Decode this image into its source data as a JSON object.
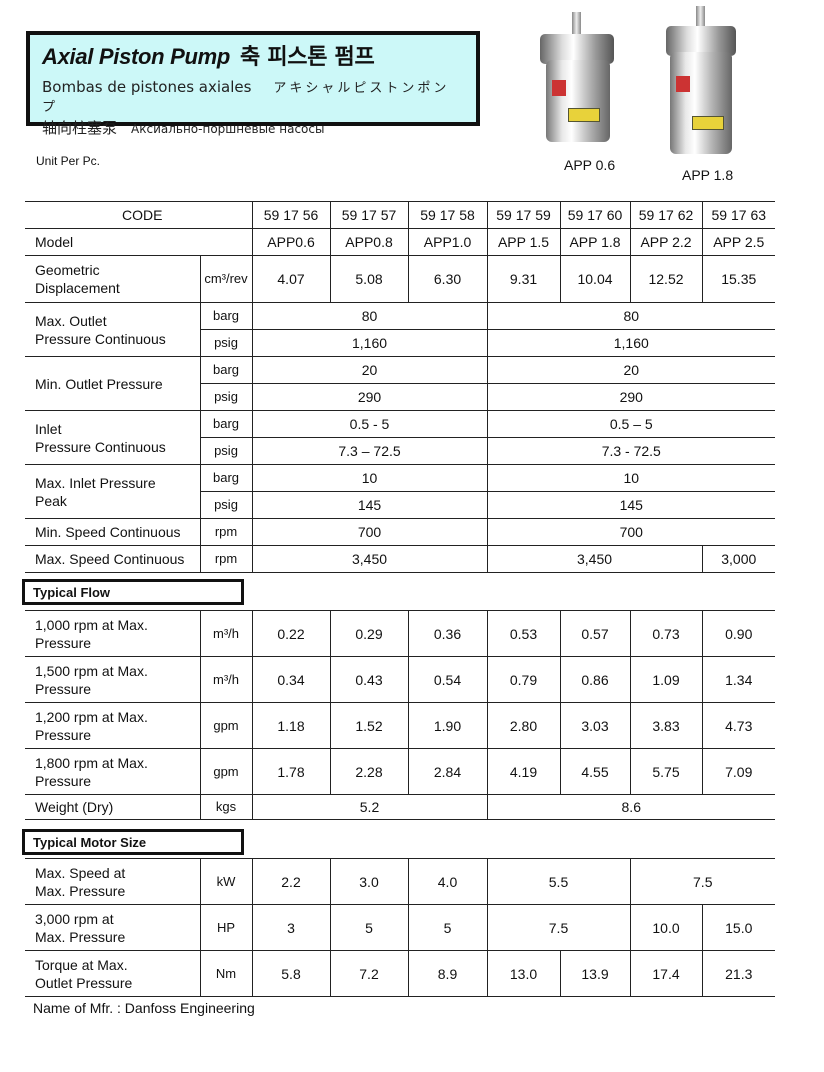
{
  "header": {
    "title_en": "Axial Piston Pump",
    "title_kr": "축 피스톤 펌프",
    "subtitle_es": "Bombas de pistones axiales",
    "subtitle_jp": "アキシャルピストンポンプ",
    "subtitle_cn": "轴向柱塞泵",
    "subtitle_ru": "Аксиально-поршневые насосы",
    "background_color": "#ccf8f8"
  },
  "unit_note": "Unit Per Pc.",
  "images": [
    {
      "caption": "APP 0.6"
    },
    {
      "caption": "APP 1.8"
    }
  ],
  "spec_table": {
    "rows": [
      {
        "label": "CODE",
        "label_colspan": 2,
        "center": true,
        "cells": [
          {
            "v": "59 17 56"
          },
          {
            "v": "59 17 57"
          },
          {
            "v": "59 17 58"
          },
          {
            "v": "59 17 59"
          },
          {
            "v": "59 17 60"
          },
          {
            "v": "59 17 62"
          },
          {
            "v": "59 17 63"
          }
        ]
      },
      {
        "label": "Model",
        "label_colspan": 2,
        "cells": [
          {
            "v": "APP0.6"
          },
          {
            "v": "APP0.8"
          },
          {
            "v": "APP1.0"
          },
          {
            "v": "APP 1.5"
          },
          {
            "v": "APP 1.8"
          },
          {
            "v": "APP 2.2"
          },
          {
            "v": "APP 2.5"
          }
        ]
      },
      {
        "label": "Geometric\nDisplacement",
        "unit": "cm³/rev",
        "cells": [
          {
            "v": "4.07"
          },
          {
            "v": "5.08"
          },
          {
            "v": "6.30"
          },
          {
            "v": "9.31"
          },
          {
            "v": "10.04"
          },
          {
            "v": "12.52"
          },
          {
            "v": "15.35"
          }
        ]
      },
      {
        "label": "Max. Outlet\nPressure Continuous",
        "label_rowspan": 2,
        "unit": "barg",
        "cells": [
          {
            "v": "80",
            "span": 3
          },
          {
            "v": "80",
            "span": 4
          }
        ]
      },
      {
        "unit": "psig",
        "cells": [
          {
            "v": "1,160",
            "span": 3
          },
          {
            "v": "1,160",
            "span": 4
          }
        ]
      },
      {
        "label": "Min. Outlet Pressure",
        "label_rowspan": 2,
        "unit": "barg",
        "cells": [
          {
            "v": "20",
            "span": 3
          },
          {
            "v": "20",
            "span": 4
          }
        ]
      },
      {
        "unit": "psig",
        "cells": [
          {
            "v": "290",
            "span": 3
          },
          {
            "v": "290",
            "span": 4
          }
        ]
      },
      {
        "label": "Inlet\nPressure Continuous",
        "label_rowspan": 2,
        "unit": "barg",
        "cells": [
          {
            "v": "0.5 - 5",
            "span": 3
          },
          {
            "v": "0.5 – 5",
            "span": 4
          }
        ]
      },
      {
        "unit": "psig",
        "cells": [
          {
            "v": "7.3 – 72.5",
            "span": 3
          },
          {
            "v": "7.3 - 72.5",
            "span": 4
          }
        ]
      },
      {
        "label": "Max. Inlet Pressure\nPeak",
        "label_rowspan": 2,
        "unit": "barg",
        "cells": [
          {
            "v": "10",
            "span": 3
          },
          {
            "v": "10",
            "span": 4
          }
        ]
      },
      {
        "unit": "psig",
        "cells": [
          {
            "v": "145",
            "span": 3
          },
          {
            "v": "145",
            "span": 4
          }
        ]
      },
      {
        "label": "Min. Speed Continuous",
        "unit": "rpm",
        "cells": [
          {
            "v": "700",
            "span": 3
          },
          {
            "v": "700",
            "span": 4
          }
        ]
      },
      {
        "label": "Max. Speed Continuous",
        "unit": "rpm",
        "cells": [
          {
            "v": "3,450",
            "span": 3
          },
          {
            "v": "3,450",
            "span": 3
          },
          {
            "v": "3,000"
          }
        ]
      }
    ]
  },
  "flow_section": {
    "title": "Typical Flow",
    "rows": [
      {
        "label": "1,000 rpm at Max.\nPressure",
        "unit": "m³/h",
        "cells": [
          {
            "v": "0.22"
          },
          {
            "v": "0.29"
          },
          {
            "v": "0.36"
          },
          {
            "v": "0.53"
          },
          {
            "v": "0.57"
          },
          {
            "v": "0.73"
          },
          {
            "v": "0.90"
          }
        ]
      },
      {
        "label": "1,500 rpm at Max.\nPressure",
        "unit": "m³/h",
        "cells": [
          {
            "v": "0.34"
          },
          {
            "v": "0.43"
          },
          {
            "v": "0.54"
          },
          {
            "v": "0.79"
          },
          {
            "v": "0.86"
          },
          {
            "v": "1.09"
          },
          {
            "v": "1.34"
          }
        ]
      },
      {
        "label": "1,200 rpm at Max.\nPressure",
        "unit": "gpm",
        "cells": [
          {
            "v": "1.18"
          },
          {
            "v": "1.52"
          },
          {
            "v": "1.90"
          },
          {
            "v": "2.80"
          },
          {
            "v": "3.03"
          },
          {
            "v": "3.83"
          },
          {
            "v": "4.73"
          }
        ]
      },
      {
        "label": "1,800 rpm at Max.\nPressure",
        "unit": "gpm",
        "cells": [
          {
            "v": "1.78"
          },
          {
            "v": "2.28"
          },
          {
            "v": "2.84"
          },
          {
            "v": "4.19"
          },
          {
            "v": "4.55"
          },
          {
            "v": "5.75"
          },
          {
            "v": "7.09"
          }
        ]
      },
      {
        "label": "Weight (Dry)",
        "unit": "kgs",
        "cells": [
          {
            "v": "5.2",
            "span": 3
          },
          {
            "v": "8.6",
            "span": 4
          }
        ]
      }
    ]
  },
  "motor_section": {
    "title": "Typical Motor Size",
    "rows": [
      {
        "label": "Max. Speed at\nMax. Pressure",
        "unit": "kW",
        "cells": [
          {
            "v": "2.2"
          },
          {
            "v": "3.0"
          },
          {
            "v": "4.0"
          },
          {
            "v": "5.5",
            "span": 2
          },
          {
            "v": "7.5",
            "span": 2
          }
        ]
      },
      {
        "label": "3,000 rpm at\nMax. Pressure",
        "unit": "HP",
        "cells": [
          {
            "v": "3"
          },
          {
            "v": "5"
          },
          {
            "v": "5"
          },
          {
            "v": "7.5",
            "span": 2
          },
          {
            "v": "10.0"
          },
          {
            "v": "15.0"
          }
        ]
      },
      {
        "label": "Torque at Max.\nOutlet Pressure",
        "unit": "Nm",
        "cells": [
          {
            "v": "5.8"
          },
          {
            "v": "7.2"
          },
          {
            "v": "8.9"
          },
          {
            "v": "13.0"
          },
          {
            "v": "13.9"
          },
          {
            "v": "17.4"
          },
          {
            "v": "21.3"
          }
        ]
      }
    ]
  },
  "footer": "Name of Mfr. : Danfoss Engineering"
}
